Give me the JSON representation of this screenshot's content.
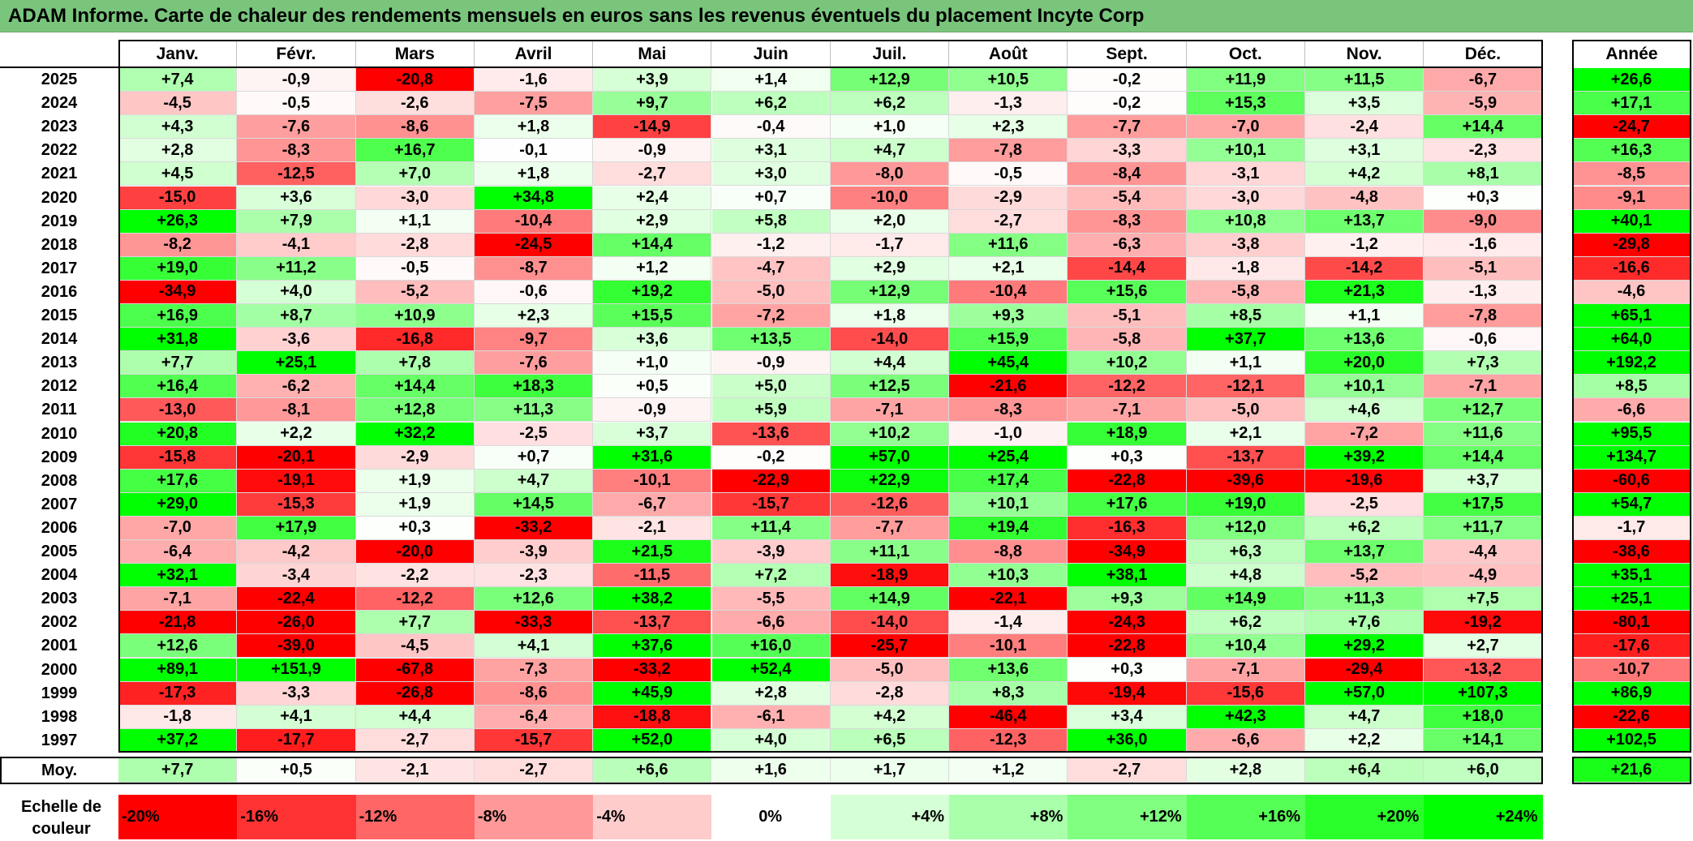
{
  "title": "ADAM Informe. Carte de chaleur des rendements mensuels en euros sans les revenus éventuels du placement Incyte Corp",
  "chart_data": {
    "type": "heatmap",
    "title": "ADAM Informe. Carte de chaleur des rendements mensuels en euros sans les revenus éventuels du placement Incyte Corp",
    "columns": [
      "Janv.",
      "Févr.",
      "Mars",
      "Avril",
      "Mai",
      "Juin",
      "Juil.",
      "Août",
      "Sept.",
      "Oct.",
      "Nov.",
      "Déc."
    ],
    "year_column_label": "Année",
    "rows": [
      {
        "year": "2025",
        "values": [
          "+7,4",
          "-0,9",
          "-20,8",
          "-1,6",
          "+3,9",
          "+1,4",
          "+12,9",
          "+10,5",
          "-0,2",
          "+11,9",
          "+11,5",
          "-6,7"
        ],
        "annual": "+26,6"
      },
      {
        "year": "2024",
        "values": [
          "-4,5",
          "-0,5",
          "-2,6",
          "-7,5",
          "+9,7",
          "+6,2",
          "+6,2",
          "-1,3",
          "-0,2",
          "+15,3",
          "+3,5",
          "-5,9"
        ],
        "annual": "+17,1"
      },
      {
        "year": "2023",
        "values": [
          "+4,3",
          "-7,6",
          "-8,6",
          "+1,8",
          "-14,9",
          "-0,4",
          "+1,0",
          "+2,3",
          "-7,7",
          "-7,0",
          "-2,4",
          "+14,4"
        ],
        "annual": "-24,7"
      },
      {
        "year": "2022",
        "values": [
          "+2,8",
          "-8,3",
          "+16,7",
          "-0,1",
          "-0,9",
          "+3,1",
          "+4,7",
          "-7,8",
          "-3,3",
          "+10,1",
          "+3,1",
          "-2,3"
        ],
        "annual": "+16,3"
      },
      {
        "year": "2021",
        "values": [
          "+4,5",
          "-12,5",
          "+7,0",
          "+1,8",
          "-2,7",
          "+3,0",
          "-8,0",
          "-0,5",
          "-8,4",
          "-3,1",
          "+4,2",
          "+8,1"
        ],
        "annual": "-8,5"
      },
      {
        "year": "2020",
        "values": [
          "-15,0",
          "+3,6",
          "-3,0",
          "+34,8",
          "+2,4",
          "+0,7",
          "-10,0",
          "-2,9",
          "-5,4",
          "-3,0",
          "-4,8",
          "+0,3"
        ],
        "annual": "-9,1"
      },
      {
        "year": "2019",
        "values": [
          "+26,3",
          "+7,9",
          "+1,1",
          "-10,4",
          "+2,9",
          "+5,8",
          "+2,0",
          "-2,7",
          "-8,3",
          "+10,8",
          "+13,7",
          "-9,0"
        ],
        "annual": "+40,1"
      },
      {
        "year": "2018",
        "values": [
          "-8,2",
          "-4,1",
          "-2,8",
          "-24,5",
          "+14,4",
          "-1,2",
          "-1,7",
          "+11,6",
          "-6,3",
          "-3,8",
          "-1,2",
          "-1,6"
        ],
        "annual": "-29,8"
      },
      {
        "year": "2017",
        "values": [
          "+19,0",
          "+11,2",
          "-0,5",
          "-8,7",
          "+1,2",
          "-4,7",
          "+2,9",
          "+2,1",
          "-14,4",
          "-1,8",
          "-14,2",
          "-5,1"
        ],
        "annual": "-16,6"
      },
      {
        "year": "2016",
        "values": [
          "-34,9",
          "+4,0",
          "-5,2",
          "-0,6",
          "+19,2",
          "-5,0",
          "+12,9",
          "-10,4",
          "+15,6",
          "-5,8",
          "+21,3",
          "-1,3"
        ],
        "annual": "-4,6"
      },
      {
        "year": "2015",
        "values": [
          "+16,9",
          "+8,7",
          "+10,9",
          "+2,3",
          "+15,5",
          "-7,2",
          "+1,8",
          "+9,3",
          "-5,1",
          "+8,5",
          "+1,1",
          "-7,8"
        ],
        "annual": "+65,1"
      },
      {
        "year": "2014",
        "values": [
          "+31,8",
          "-3,6",
          "-16,8",
          "-9,7",
          "+3,6",
          "+13,5",
          "-14,0",
          "+15,9",
          "-5,8",
          "+37,7",
          "+13,6",
          "-0,6"
        ],
        "annual": "+64,0"
      },
      {
        "year": "2013",
        "values": [
          "+7,7",
          "+25,1",
          "+7,8",
          "-7,6",
          "+1,0",
          "-0,9",
          "+4,4",
          "+45,4",
          "+10,2",
          "+1,1",
          "+20,0",
          "+7,3"
        ],
        "annual": "+192,2"
      },
      {
        "year": "2012",
        "values": [
          "+16,4",
          "-6,2",
          "+14,4",
          "+18,3",
          "+0,5",
          "+5,0",
          "+12,5",
          "-21,6",
          "-12,2",
          "-12,1",
          "+10,1",
          "-7,1"
        ],
        "annual": "+8,5"
      },
      {
        "year": "2011",
        "values": [
          "-13,0",
          "-8,1",
          "+12,8",
          "+11,3",
          "-0,9",
          "+5,9",
          "-7,1",
          "-8,3",
          "-7,1",
          "-5,0",
          "+4,6",
          "+12,7"
        ],
        "annual": "-6,6"
      },
      {
        "year": "2010",
        "values": [
          "+20,8",
          "+2,2",
          "+32,2",
          "-2,5",
          "+3,7",
          "-13,6",
          "+10,2",
          "-1,0",
          "+18,9",
          "+2,1",
          "-7,2",
          "+11,6"
        ],
        "annual": "+95,5"
      },
      {
        "year": "2009",
        "values": [
          "-15,8",
          "-20,1",
          "-2,9",
          "+0,7",
          "+31,6",
          "-0,2",
          "+57,0",
          "+25,4",
          "+0,3",
          "-13,7",
          "+39,2",
          "+14,4"
        ],
        "annual": "+134,7"
      },
      {
        "year": "2008",
        "values": [
          "+17,6",
          "-19,1",
          "+1,9",
          "+4,7",
          "-10,1",
          "-22,9",
          "+22,9",
          "+17,4",
          "-22,8",
          "-39,6",
          "-19,6",
          "+3,7"
        ],
        "annual": "-60,6"
      },
      {
        "year": "2007",
        "values": [
          "+29,0",
          "-15,3",
          "+1,9",
          "+14,5",
          "-6,7",
          "-15,7",
          "-12,6",
          "+10,1",
          "+17,6",
          "+19,0",
          "-2,5",
          "+17,5"
        ],
        "annual": "+54,7"
      },
      {
        "year": "2006",
        "values": [
          "-7,0",
          "+17,9",
          "+0,3",
          "-33,2",
          "-2,1",
          "+11,4",
          "-7,7",
          "+19,4",
          "-16,3",
          "+12,0",
          "+6,2",
          "+11,7"
        ],
        "annual": "-1,7"
      },
      {
        "year": "2005",
        "values": [
          "-6,4",
          "-4,2",
          "-20,0",
          "-3,9",
          "+21,5",
          "-3,9",
          "+11,1",
          "-8,8",
          "-34,9",
          "+6,3",
          "+13,7",
          "-4,4"
        ],
        "annual": "-38,6"
      },
      {
        "year": "2004",
        "values": [
          "+32,1",
          "-3,4",
          "-2,2",
          "-2,3",
          "-11,5",
          "+7,2",
          "-18,9",
          "+10,3",
          "+38,1",
          "+4,8",
          "-5,2",
          "-4,9"
        ],
        "annual": "+35,1"
      },
      {
        "year": "2003",
        "values": [
          "-7,1",
          "-22,4",
          "-12,2",
          "+12,6",
          "+38,2",
          "-5,5",
          "+14,9",
          "-22,1",
          "+9,3",
          "+14,9",
          "+11,3",
          "+7,5"
        ],
        "annual": "+25,1"
      },
      {
        "year": "2002",
        "values": [
          "-21,8",
          "-26,0",
          "+7,7",
          "-33,3",
          "-13,7",
          "-6,6",
          "-14,0",
          "-1,4",
          "-24,3",
          "+6,2",
          "+7,6",
          "-19,2"
        ],
        "annual": "-80,1"
      },
      {
        "year": "2001",
        "values": [
          "+12,6",
          "-39,0",
          "-4,5",
          "+4,1",
          "+37,6",
          "+16,0",
          "-25,7",
          "-10,1",
          "-22,8",
          "+10,4",
          "+29,2",
          "+2,7"
        ],
        "annual": "-17,6"
      },
      {
        "year": "2000",
        "values": [
          "+89,1",
          "+151,9",
          "-67,8",
          "-7,3",
          "-33,2",
          "+52,4",
          "-5,0",
          "+13,6",
          "+0,3",
          "-7,1",
          "-29,4",
          "-13,2"
        ],
        "annual": "-10,7"
      },
      {
        "year": "1999",
        "values": [
          "-17,3",
          "-3,3",
          "-26,8",
          "-8,6",
          "+45,9",
          "+2,8",
          "-2,8",
          "+8,3",
          "-19,4",
          "-15,6",
          "+57,0",
          "+107,3"
        ],
        "annual": "+86,9"
      },
      {
        "year": "1998",
        "values": [
          "-1,8",
          "+4,1",
          "+4,4",
          "-6,4",
          "-18,8",
          "-6,1",
          "+4,2",
          "-46,4",
          "+3,4",
          "+42,3",
          "+4,7",
          "+18,0"
        ],
        "annual": "-22,6"
      },
      {
        "year": "1997",
        "values": [
          "+37,2",
          "-17,7",
          "-2,7",
          "-15,7",
          "+52,0",
          "+4,0",
          "+6,5",
          "-12,3",
          "+36,0",
          "-6,6",
          "+2,2",
          "+14,1"
        ],
        "annual": "+102,5"
      }
    ],
    "average": {
      "label": "Moy.",
      "values": [
        "+7,7",
        "+0,5",
        "-2,1",
        "-2,7",
        "+6,6",
        "+1,6",
        "+1,7",
        "+1,2",
        "-2,7",
        "+2,8",
        "+6,4",
        "+6,0"
      ],
      "annual": "+21,6"
    },
    "color_scale": {
      "label": "Echelle de couleur",
      "stops": [
        {
          "label": "-20%",
          "value": -20,
          "color": "#ff0000"
        },
        {
          "label": "-16%",
          "value": -16,
          "color": "#ff3333"
        },
        {
          "label": "-12%",
          "value": -12,
          "color": "#ff6666"
        },
        {
          "label": "-8%",
          "value": -8,
          "color": "#ff9999"
        },
        {
          "label": "-4%",
          "value": -4,
          "color": "#ffcccc"
        },
        {
          "label": "0%",
          "value": 0,
          "color": "#ffffff"
        },
        {
          "label": "+4%",
          "value": 4,
          "color": "#d5ffd5"
        },
        {
          "label": "+8%",
          "value": 8,
          "color": "#aaffaa"
        },
        {
          "label": "+12%",
          "value": 12,
          "color": "#80ff80"
        },
        {
          "label": "+16%",
          "value": 16,
          "color": "#55ff55"
        },
        {
          "label": "+20%",
          "value": 20,
          "color": "#2bff2b"
        },
        {
          "label": "+24%",
          "value": 24,
          "color": "#00ff00"
        }
      ]
    }
  }
}
